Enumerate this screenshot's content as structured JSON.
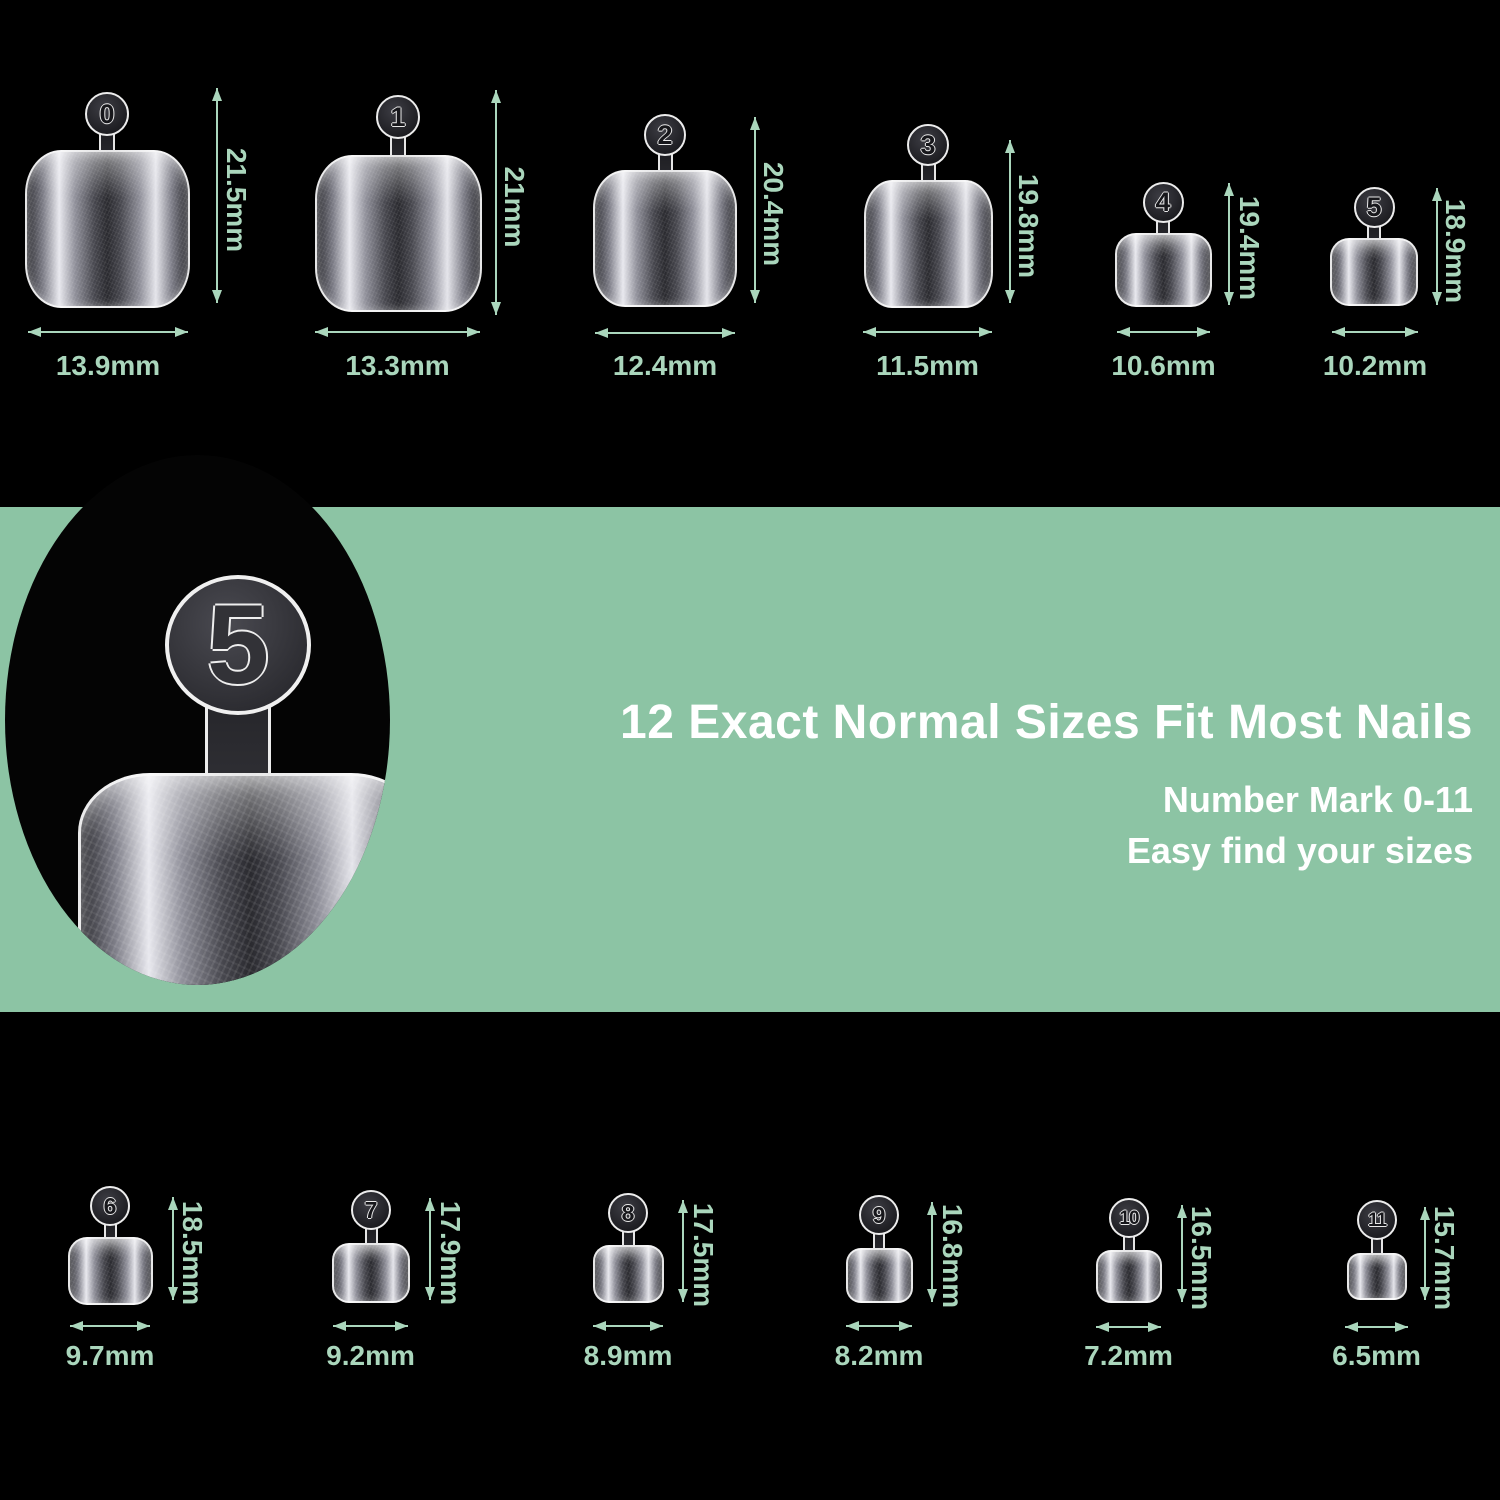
{
  "colors": {
    "background": "#000000",
    "band_green": "#8cc4a4",
    "dimension_mint": "#aad6bc",
    "headline_white": "#ffffff"
  },
  "headline": {
    "title": "12 Exact Normal Sizes Fit Most Nails",
    "subtitle_line1": "Number Mark 0-11",
    "subtitle_line2": "Easy find your sizes"
  },
  "callout": {
    "magnified_mark": "5"
  },
  "nails": [
    {
      "mark": "0",
      "width_mm": "13.9mm",
      "height_mm": "21.5mm"
    },
    {
      "mark": "1",
      "width_mm": "13.3mm",
      "height_mm": "21mm"
    },
    {
      "mark": "2",
      "width_mm": "12.4mm",
      "height_mm": "20.4mm"
    },
    {
      "mark": "3",
      "width_mm": "11.5mm",
      "height_mm": "19.8mm"
    },
    {
      "mark": "4",
      "width_mm": "10.6mm",
      "height_mm": "19.4mm"
    },
    {
      "mark": "5",
      "width_mm": "10.2mm",
      "height_mm": "18.9mm"
    },
    {
      "mark": "6",
      "width_mm": "9.7mm",
      "height_mm": "18.5mm"
    },
    {
      "mark": "7",
      "width_mm": "9.2mm",
      "height_mm": "17.9mm"
    },
    {
      "mark": "8",
      "width_mm": "8.9mm",
      "height_mm": "17.5mm"
    },
    {
      "mark": "9",
      "width_mm": "8.2mm",
      "height_mm": "16.8mm"
    },
    {
      "mark": "10",
      "width_mm": "7.2mm",
      "height_mm": "16.5mm"
    },
    {
      "mark": "11",
      "width_mm": "6.5mm",
      "height_mm": "15.7mm"
    }
  ]
}
